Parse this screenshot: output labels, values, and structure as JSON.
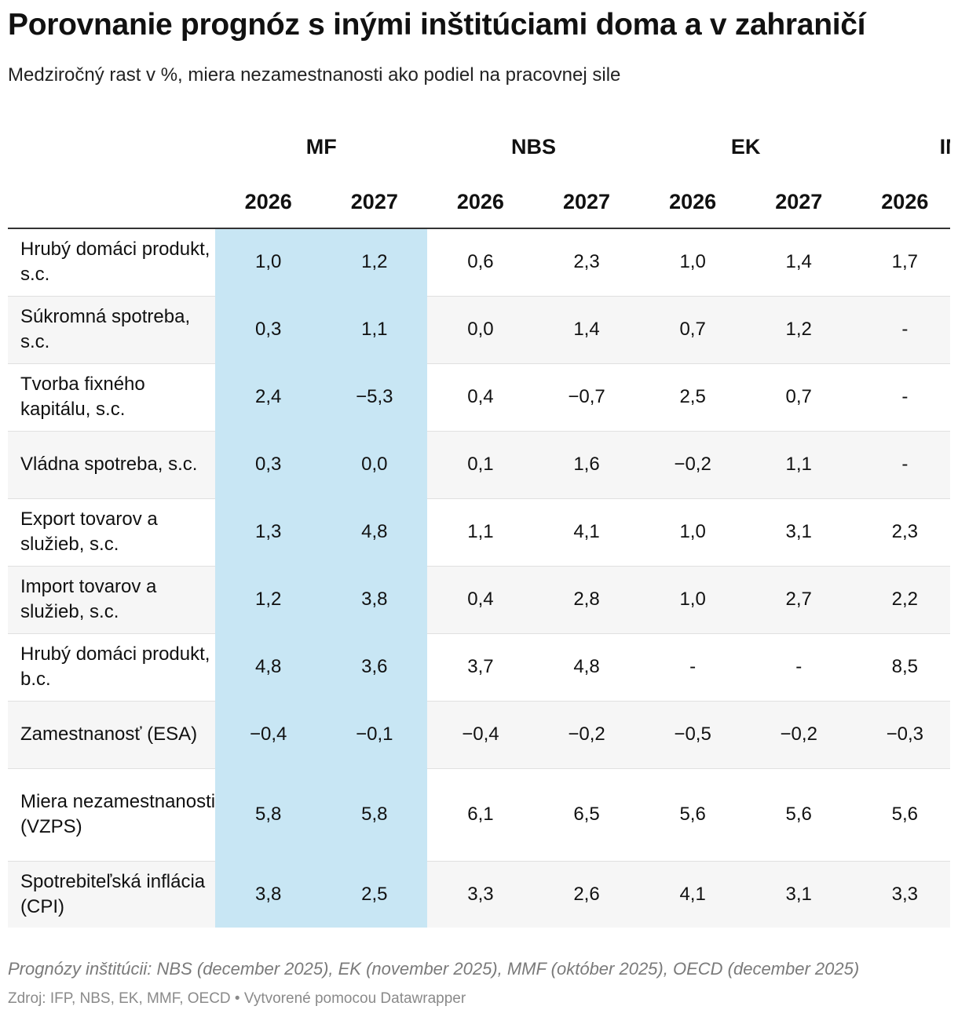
{
  "title": "Porovnanie prognóz s inými inštitúciami doma a v zahraničí",
  "subtitle": "Medziročný rast v %, miera nezamestnanosti ako podiel na pracovnej sile",
  "colors": {
    "highlight": "#c8e6f4",
    "stripe": "#f6f6f6",
    "rule": "#333333"
  },
  "table": {
    "groups": [
      "MF",
      "NBS",
      "EK",
      "IMF"
    ],
    "years": [
      "2026",
      "2027",
      "2026",
      "2027",
      "2026",
      "2027",
      "2026"
    ],
    "rows": [
      {
        "label": "Hrubý domáci produkt, s.c.",
        "values": [
          "1,0",
          "1,2",
          "0,6",
          "2,3",
          "1,0",
          "1,4",
          "1,7"
        ]
      },
      {
        "label": "Súkromná spotreba, s.c.",
        "values": [
          "0,3",
          "1,1",
          "0,0",
          "1,4",
          "0,7",
          "1,2",
          "-"
        ]
      },
      {
        "label": "Tvorba fixného kapitálu, s.c.",
        "values": [
          "2,4",
          "−5,3",
          "0,4",
          "−0,7",
          "2,5",
          "0,7",
          "-"
        ]
      },
      {
        "label": "Vládna spotreba, s.c.",
        "values": [
          "0,3",
          "0,0",
          "0,1",
          "1,6",
          "−0,2",
          "1,1",
          "-"
        ]
      },
      {
        "label": "Export tovarov a služieb, s.c.",
        "values": [
          "1,3",
          "4,8",
          "1,1",
          "4,1",
          "1,0",
          "3,1",
          "2,3"
        ]
      },
      {
        "label": "Import tovarov a služieb, s.c.",
        "values": [
          "1,2",
          "3,8",
          "0,4",
          "2,8",
          "1,0",
          "2,7",
          "2,2"
        ]
      },
      {
        "label": "Hrubý domáci produkt, b.c.",
        "values": [
          "4,8",
          "3,6",
          "3,7",
          "4,8",
          "-",
          "-",
          "8,5"
        ]
      },
      {
        "label": "Zamestnanosť (ESA)",
        "values": [
          "−0,4",
          "−0,1",
          "−0,4",
          "−0,2",
          "−0,5",
          "−0,2",
          "−0,3"
        ]
      },
      {
        "label": "Miera nezamestnanosti (VZPS)",
        "values": [
          "5,8",
          "5,8",
          "6,1",
          "6,5",
          "5,6",
          "5,6",
          "5,6"
        ]
      },
      {
        "label": "Spotrebiteľská inflácia (CPI)",
        "values": [
          "3,8",
          "2,5",
          "3,3",
          "2,6",
          "4,1",
          "3,1",
          "3,3"
        ]
      }
    ]
  },
  "footer": {
    "note": "Prognózy inštitúcii: NBS (december 2025), EK (november 2025), MMF (október 2025), OECD (december 2025)",
    "source": "Zdroj: IFP, NBS, EK, MMF, OECD • Vytvorené pomocou Datawrapper"
  }
}
